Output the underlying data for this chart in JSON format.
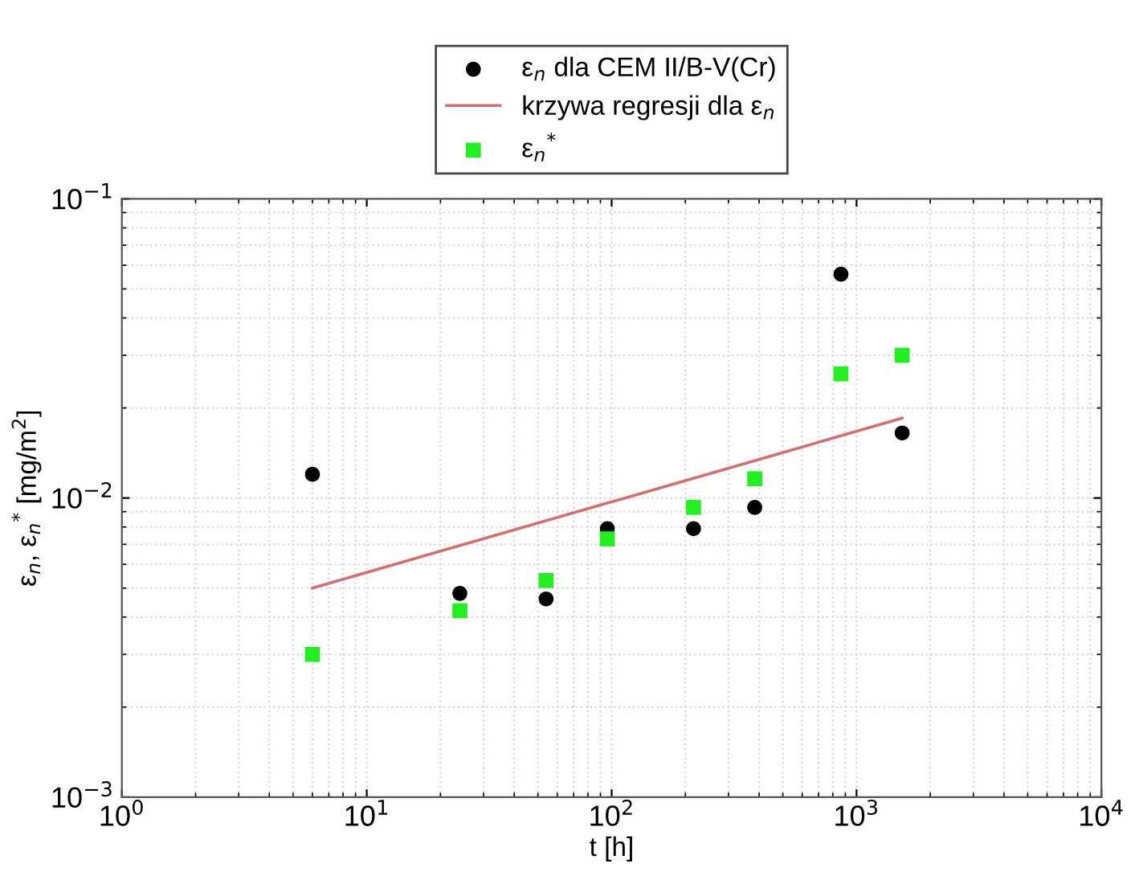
{
  "chart_data": {
    "type": "scatter",
    "xlabel": "t [h]",
    "ylabel": "ε$_{n}$, ε$_{n}$$^{*}$ [mg/m$^{2}$]",
    "log": "xy",
    "grid": true,
    "legend": "top",
    "xlim": [
      1,
      10000
    ],
    "xticks": [
      {
        "value": 1,
        "label": "10$^{0}$"
      },
      {
        "value": 10,
        "label": "10$^{1}$"
      },
      {
        "value": 100,
        "label": "10$^{2}$"
      },
      {
        "value": 1000,
        "label": "10$^{3}$"
      },
      {
        "value": 10000,
        "label": "10$^{4}$"
      }
    ],
    "ylim": [
      0.001,
      0.1
    ],
    "yticks": [
      {
        "value": 0.001,
        "label": "10$^{−3}$"
      },
      {
        "value": 0.01,
        "label": "10$^{−2}$"
      },
      {
        "value": 0.1,
        "label": "10$^{−1}$"
      }
    ],
    "series": [
      {
        "name": "ε$_{n}$ dla CEM II/B-V(Cr)",
        "marker": "circle",
        "color": "#000000",
        "x": [
          6,
          24,
          54,
          96,
          216,
          384,
          864,
          1536
        ],
        "values": [
          0.012,
          0.0048,
          0.0046,
          0.0079,
          0.0079,
          0.0093,
          0.056,
          0.0165
        ]
      },
      {
        "name": "krzywa regresji dla ε$_{n}$",
        "type": "line",
        "marker": "none",
        "line_style": "solid",
        "color": "#d07070",
        "x": [
          6,
          1536
        ],
        "values": [
          0.005,
          0.0185
        ]
      },
      {
        "name": "ε$_{n}$$^{*}$",
        "marker": "square",
        "color": "#22ee22",
        "x": [
          6,
          24,
          54,
          96,
          216,
          384,
          864,
          1536
        ],
        "values": [
          0.003,
          0.0042,
          0.0053,
          0.0073,
          0.0093,
          0.0116,
          0.026,
          0.03
        ]
      }
    ]
  }
}
